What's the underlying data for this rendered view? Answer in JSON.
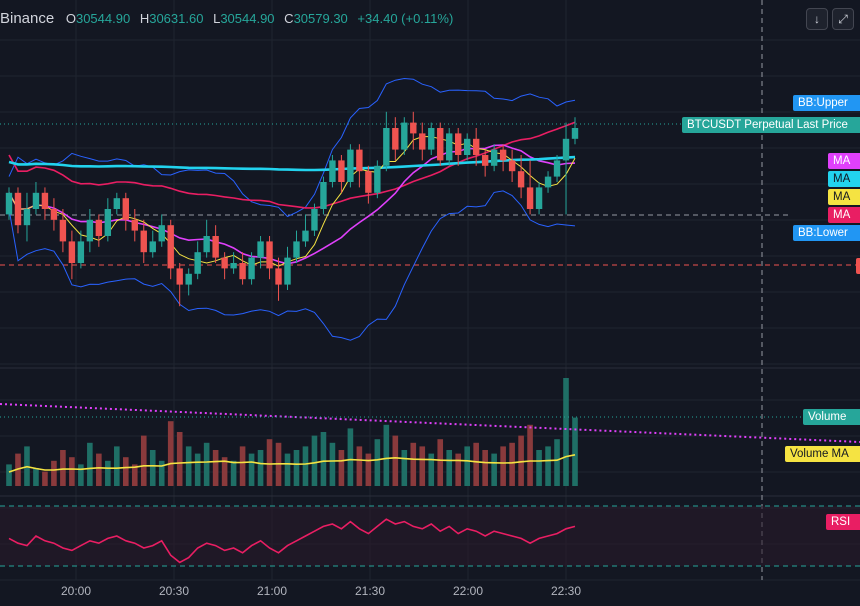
{
  "legend": {
    "exchange": "Binance",
    "open_label": "O",
    "open": "30544.90",
    "high_label": "H",
    "high": "30631.60",
    "low_label": "L",
    "low": "30544.90",
    "close_label": "C",
    "close": "30579.30",
    "change": "+34.40 (+0.11%)"
  },
  "toolbar": {
    "down_icon": "arrow-down-icon",
    "expand_icon": "expand-icon",
    "down_glyph": "↓",
    "expand_glyph": "⤢"
  },
  "badges": {
    "bb_upper": "BB:Upper",
    "last_price": "BTCUSDT Perpetual Last Price",
    "ma1": "MA",
    "ma2": "MA",
    "ma3": "MA",
    "ma4": "MA",
    "bb_lower": "BB:Lower",
    "volume": "Volume",
    "volume_ma": "Volume MA",
    "rsi": "RSI"
  },
  "colors": {
    "up": "#26a69a",
    "down": "#ef5350",
    "ma_yellow": "#f5e342",
    "ma_cyan": "#22d3ee",
    "ma_magenta": "#e040fb",
    "ma_red": "#e91e63",
    "bb": "#2962ff",
    "rsi": "#e91e63",
    "badge_blue": "#2196f3",
    "badge_teal": "#26a69a"
  },
  "chart_data": {
    "type": "candlestick",
    "x_ticks": [
      "20:00",
      "20:30",
      "21:00",
      "21:30",
      "22:00",
      "22:30"
    ],
    "price_candles": [
      [
        28,
        36,
        26,
        38
      ],
      [
        36,
        24,
        21,
        38
      ],
      [
        24,
        30,
        18,
        36
      ],
      [
        30,
        36,
        28,
        40
      ],
      [
        36,
        30,
        26,
        38
      ],
      [
        30,
        26,
        22,
        34
      ],
      [
        26,
        18,
        14,
        30
      ],
      [
        18,
        10,
        4,
        22
      ],
      [
        10,
        18,
        8,
        22
      ],
      [
        18,
        26,
        14,
        30
      ],
      [
        26,
        20,
        16,
        28
      ],
      [
        20,
        30,
        18,
        34
      ],
      [
        30,
        34,
        28,
        36
      ],
      [
        34,
        26,
        22,
        36
      ],
      [
        26,
        22,
        18,
        30
      ],
      [
        22,
        14,
        10,
        26
      ],
      [
        14,
        18,
        12,
        22
      ],
      [
        18,
        24,
        16,
        28
      ],
      [
        24,
        8,
        4,
        26
      ],
      [
        8,
        2,
        -6,
        10
      ],
      [
        2,
        6,
        -2,
        8
      ],
      [
        6,
        14,
        4,
        18
      ],
      [
        14,
        20,
        12,
        26
      ],
      [
        20,
        12,
        10,
        24
      ],
      [
        12,
        8,
        4,
        14
      ],
      [
        8,
        10,
        6,
        14
      ],
      [
        10,
        4,
        2,
        14
      ],
      [
        4,
        12,
        2,
        14
      ],
      [
        12,
        18,
        8,
        20
      ],
      [
        18,
        8,
        4,
        20
      ],
      [
        8,
        2,
        -4,
        12
      ],
      [
        2,
        12,
        0,
        16
      ],
      [
        12,
        18,
        10,
        22
      ],
      [
        18,
        22,
        16,
        28
      ],
      [
        22,
        30,
        20,
        32
      ],
      [
        30,
        40,
        28,
        42
      ],
      [
        40,
        48,
        38,
        50
      ],
      [
        48,
        40,
        36,
        50
      ],
      [
        40,
        52,
        38,
        54
      ],
      [
        52,
        44,
        38,
        54
      ],
      [
        44,
        36,
        32,
        46
      ],
      [
        36,
        46,
        34,
        48
      ],
      [
        46,
        60,
        44,
        66
      ],
      [
        60,
        52,
        48,
        64
      ],
      [
        52,
        62,
        50,
        64
      ],
      [
        62,
        58,
        52,
        66
      ],
      [
        58,
        52,
        48,
        62
      ],
      [
        52,
        60,
        50,
        62
      ],
      [
        60,
        48,
        46,
        62
      ],
      [
        48,
        58,
        46,
        60
      ],
      [
        58,
        50,
        46,
        60
      ],
      [
        50,
        56,
        48,
        58
      ],
      [
        56,
        50,
        46,
        60
      ],
      [
        50,
        46,
        42,
        52
      ],
      [
        46,
        52,
        44,
        54
      ],
      [
        52,
        48,
        44,
        54
      ],
      [
        48,
        44,
        40,
        52
      ],
      [
        44,
        38,
        34,
        50
      ],
      [
        38,
        30,
        28,
        48
      ],
      [
        30,
        38,
        28,
        40
      ],
      [
        38,
        42,
        36,
        44
      ],
      [
        42,
        48,
        40,
        50
      ],
      [
        48,
        56,
        28,
        62
      ],
      [
        56,
        60,
        54,
        64
      ]
    ],
    "volume": [
      12,
      18,
      22,
      10,
      8,
      14,
      20,
      16,
      12,
      24,
      18,
      14,
      22,
      16,
      12,
      28,
      20,
      14,
      36,
      30,
      22,
      18,
      24,
      20,
      16,
      14,
      22,
      18,
      20,
      26,
      24,
      18,
      20,
      22,
      28,
      30,
      24,
      20,
      32,
      22,
      18,
      26,
      34,
      28,
      20,
      24,
      22,
      18,
      26,
      20,
      18,
      22,
      24,
      20,
      18,
      22,
      24,
      28,
      34,
      20,
      22,
      26,
      60,
      38
    ],
    "rsi": [
      48,
      44,
      42,
      50,
      46,
      44,
      40,
      38,
      42,
      46,
      44,
      48,
      50,
      46,
      44,
      40,
      42,
      46,
      34,
      28,
      32,
      40,
      44,
      42,
      38,
      40,
      36,
      42,
      46,
      40,
      36,
      42,
      46,
      50,
      54,
      58,
      60,
      56,
      62,
      56,
      52,
      58,
      64,
      60,
      62,
      58,
      56,
      60,
      54,
      58,
      52,
      56,
      54,
      50,
      54,
      52,
      50,
      48,
      44,
      48,
      50,
      52,
      56,
      58
    ]
  }
}
